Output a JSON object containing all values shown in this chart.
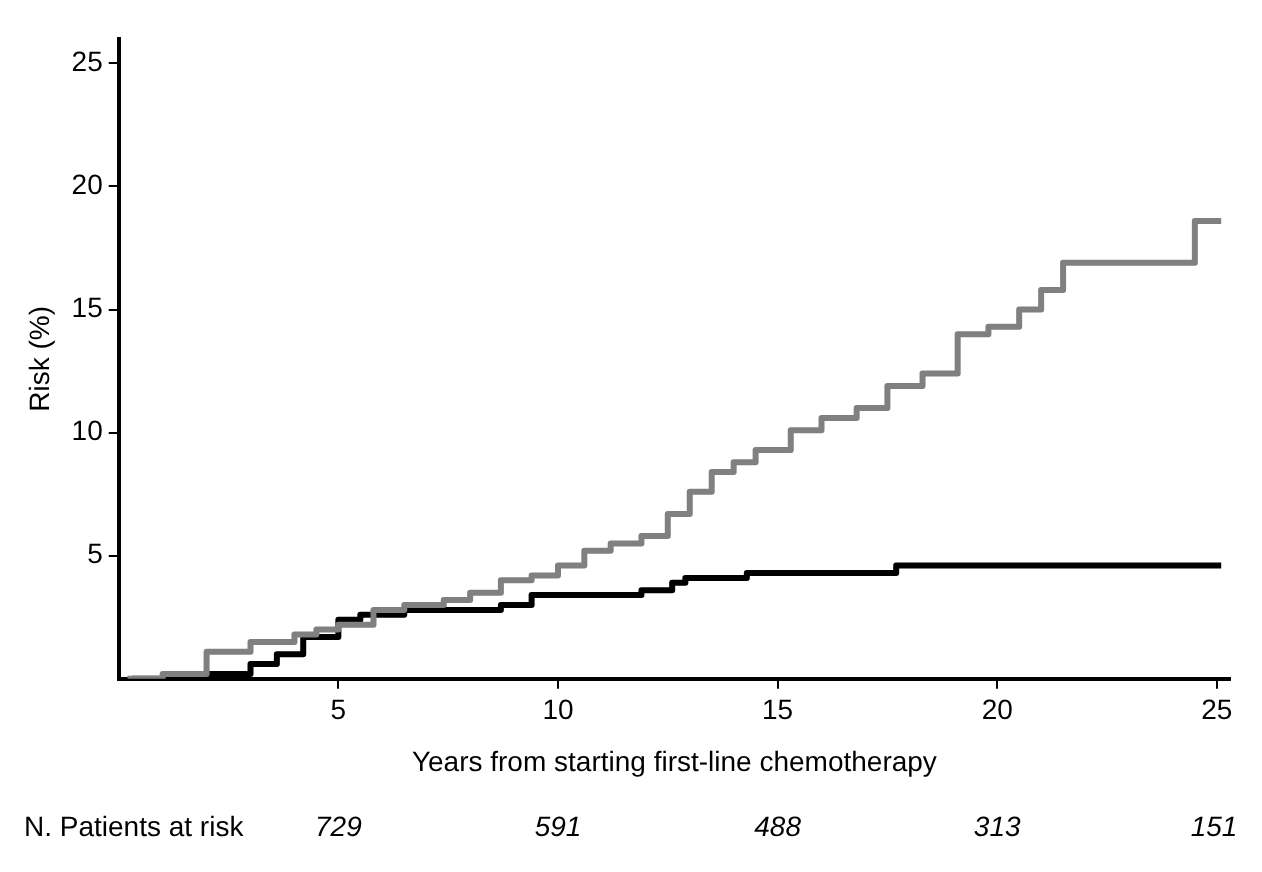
{
  "chart_data": {
    "type": "step",
    "xlabel": "Years from starting first-line chemotherapy",
    "ylabel": "Risk (%)",
    "xlim": [
      0,
      25.3
    ],
    "ylim": [
      0,
      26
    ],
    "xticks": [
      5,
      10,
      15,
      20,
      25
    ],
    "yticks": [
      5,
      10,
      15,
      20,
      25
    ],
    "grid": false,
    "legend": false,
    "marker": "none",
    "series": [
      {
        "color": "#808080",
        "x": [
          0.2,
          1.0,
          2.0,
          3.0,
          4.0,
          4.5,
          5.0,
          5.8,
          6.5,
          7.4,
          8.0,
          8.7,
          9.4,
          10.0,
          10.6,
          11.2,
          11.9,
          12.5,
          13.0,
          13.5,
          14.0,
          14.5,
          15.3,
          16.0,
          16.8,
          17.5,
          18.3,
          19.1,
          19.8,
          20.5,
          21.0,
          21.5,
          24.5,
          25.1
        ],
        "values": [
          0,
          0.2,
          1.1,
          1.5,
          1.8,
          2.0,
          2.2,
          2.8,
          3.0,
          3.2,
          3.5,
          4.0,
          4.2,
          4.6,
          5.2,
          5.5,
          5.8,
          6.7,
          7.6,
          8.4,
          8.8,
          9.3,
          10.1,
          10.6,
          11.0,
          11.9,
          12.4,
          14.0,
          14.3,
          15.0,
          15.8,
          16.9,
          18.6,
          18.6
        ]
      },
      {
        "color": "#000000",
        "x": [
          0.3,
          2.0,
          3.0,
          3.6,
          4.2,
          5.0,
          5.5,
          6.5,
          8.7,
          9.4,
          11.9,
          12.6,
          12.9,
          14.3,
          17.7,
          25.1
        ],
        "values": [
          0,
          0.2,
          0.6,
          1.0,
          1.7,
          2.4,
          2.6,
          2.8,
          3.0,
          3.4,
          3.6,
          3.9,
          4.1,
          4.3,
          4.6,
          4.6
        ]
      }
    ],
    "annotations": [
      "N. Patients at risk",
      "729",
      "591",
      "488",
      "313",
      "151"
    ]
  }
}
